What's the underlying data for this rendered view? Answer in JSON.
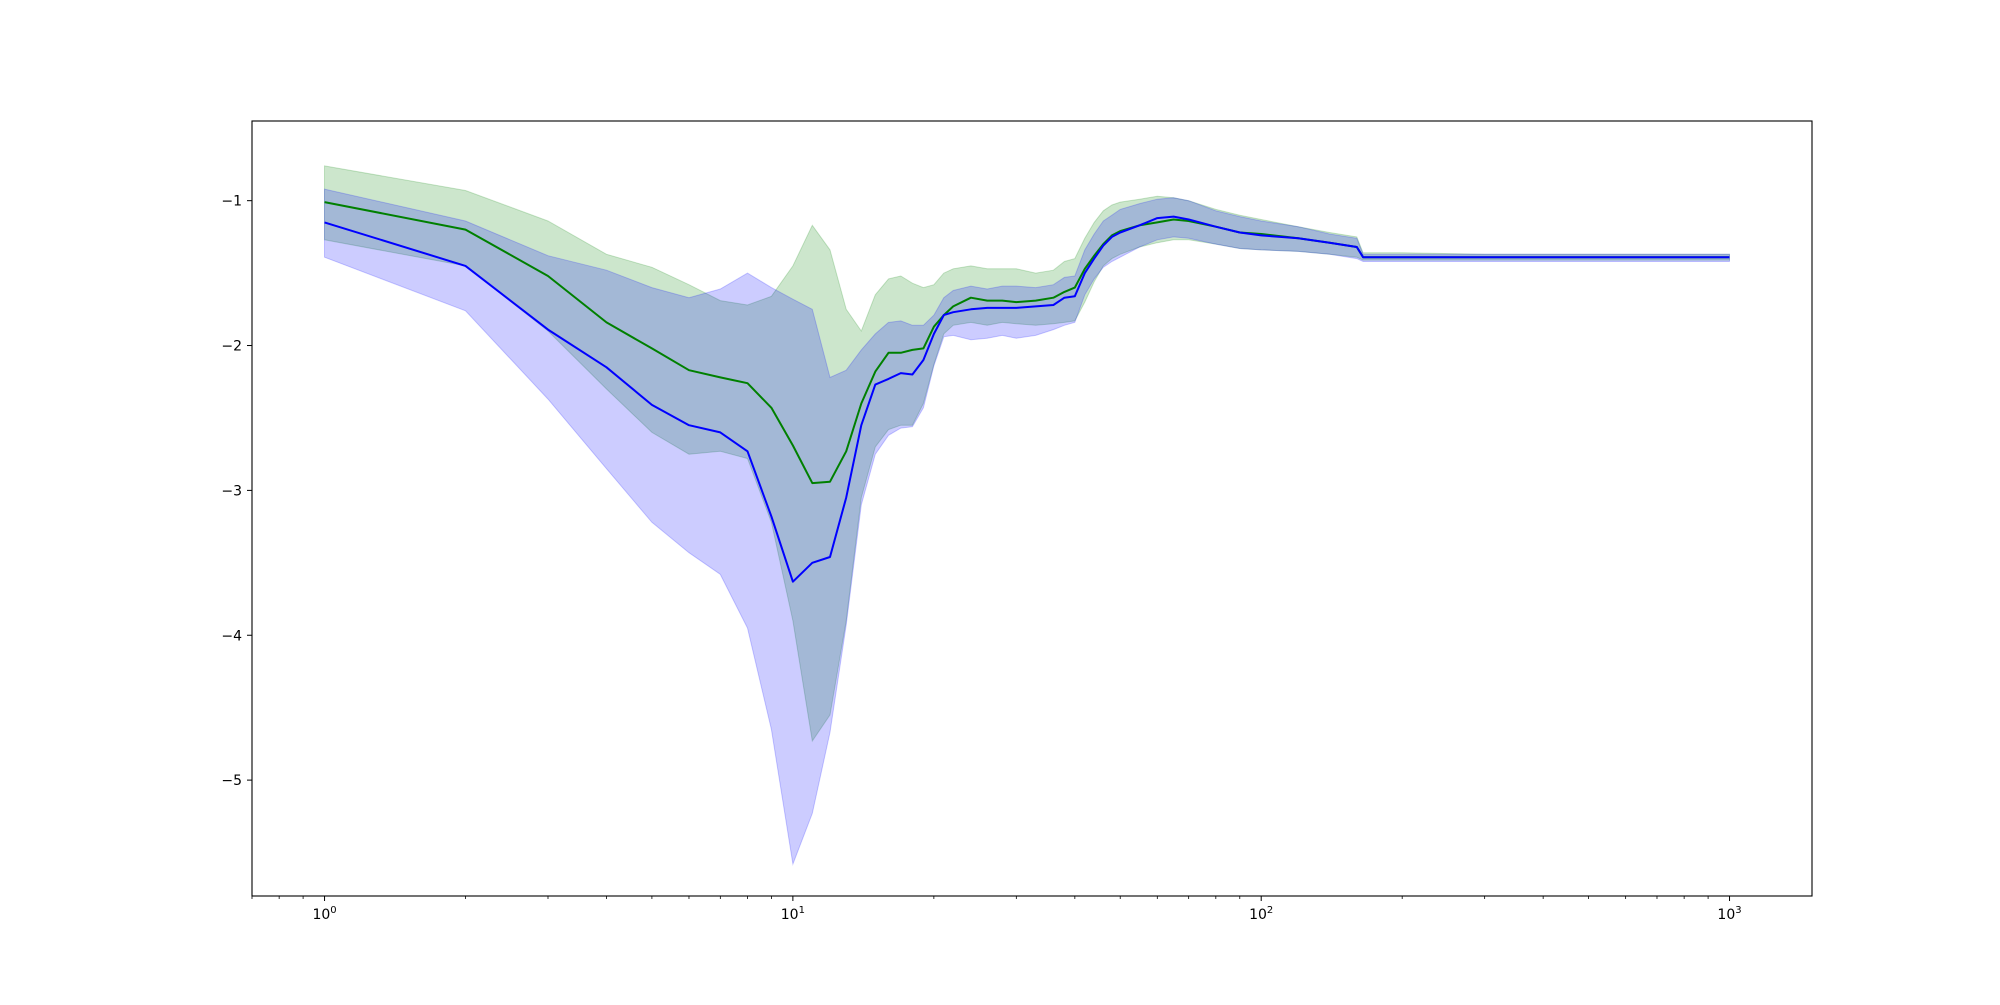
{
  "chart_data": {
    "type": "line",
    "title": "",
    "xlabel": "",
    "ylabel": "",
    "xscale": "log",
    "xlim": [
      0.7,
      1500
    ],
    "ylim": [
      -5.8,
      -0.45
    ],
    "grid": false,
    "legend": "none",
    "x_ticks": [
      {
        "value": 1,
        "base": "10",
        "exp": "0"
      },
      {
        "value": 10,
        "base": "10",
        "exp": "1"
      },
      {
        "value": 100,
        "base": "10",
        "exp": "2"
      },
      {
        "value": 1000,
        "base": "10",
        "exp": "3"
      }
    ],
    "y_ticks": [
      {
        "value": -1,
        "label": "−1"
      },
      {
        "value": -2,
        "label": "−2"
      },
      {
        "value": -3,
        "label": "−3"
      },
      {
        "value": -4,
        "label": "−4"
      },
      {
        "value": -5,
        "label": "−5"
      }
    ],
    "series": [
      {
        "color": "#008000",
        "band_color": "#008000",
        "x": [
          1,
          2,
          3,
          4,
          5,
          6,
          7,
          8,
          9,
          10,
          11,
          12,
          13,
          14,
          15,
          16,
          17,
          18,
          19,
          20,
          21,
          22,
          24,
          26,
          28,
          30,
          33,
          36,
          38,
          40,
          42,
          44,
          46,
          48,
          50,
          55,
          60,
          65,
          70,
          80,
          90,
          100,
          120,
          140,
          160,
          165,
          200,
          300,
          500,
          1000
        ],
        "y": [
          -1.01,
          -1.2,
          -1.52,
          -1.84,
          -2.02,
          -2.17,
          -2.22,
          -2.26,
          -2.43,
          -2.69,
          -2.95,
          -2.94,
          -2.73,
          -2.4,
          -2.18,
          -2.05,
          -2.05,
          -2.03,
          -2.02,
          -1.87,
          -1.79,
          -1.73,
          -1.67,
          -1.69,
          -1.69,
          -1.7,
          -1.69,
          -1.67,
          -1.63,
          -1.6,
          -1.47,
          -1.38,
          -1.3,
          -1.24,
          -1.21,
          -1.17,
          -1.15,
          -1.13,
          -1.14,
          -1.18,
          -1.22,
          -1.23,
          -1.26,
          -1.29,
          -1.32,
          -1.39,
          -1.39,
          -1.39,
          -1.39,
          -1.39
        ],
        "upper": [
          -0.76,
          -0.93,
          -1.14,
          -1.37,
          -1.46,
          -1.58,
          -1.69,
          -1.72,
          -1.66,
          -1.45,
          -1.17,
          -1.34,
          -1.75,
          -1.9,
          -1.65,
          -1.54,
          -1.52,
          -1.57,
          -1.6,
          -1.58,
          -1.5,
          -1.47,
          -1.45,
          -1.47,
          -1.47,
          -1.47,
          -1.5,
          -1.48,
          -1.42,
          -1.4,
          -1.26,
          -1.15,
          -1.07,
          -1.03,
          -1.01,
          -0.99,
          -0.97,
          -0.98,
          -1.0,
          -1.06,
          -1.1,
          -1.13,
          -1.18,
          -1.22,
          -1.25,
          -1.36,
          -1.36,
          -1.37,
          -1.37,
          -1.37
        ],
        "lower": [
          -1.27,
          -1.45,
          -1.9,
          -2.3,
          -2.6,
          -2.75,
          -2.73,
          -2.78,
          -3.22,
          -3.9,
          -4.73,
          -4.55,
          -3.9,
          -3.05,
          -2.7,
          -2.58,
          -2.55,
          -2.55,
          -2.4,
          -2.13,
          -1.92,
          -1.86,
          -1.84,
          -1.86,
          -1.84,
          -1.85,
          -1.86,
          -1.85,
          -1.84,
          -1.83,
          -1.7,
          -1.56,
          -1.45,
          -1.4,
          -1.37,
          -1.32,
          -1.29,
          -1.27,
          -1.27,
          -1.3,
          -1.33,
          -1.34,
          -1.35,
          -1.37,
          -1.39,
          -1.41,
          -1.41,
          -1.41,
          -1.41,
          -1.41
        ]
      },
      {
        "color": "#0000ff",
        "band_color": "#0000ff",
        "x": [
          1,
          2,
          3,
          4,
          5,
          6,
          7,
          8,
          9,
          10,
          11,
          12,
          13,
          14,
          15,
          16,
          17,
          18,
          19,
          20,
          21,
          22,
          24,
          26,
          28,
          30,
          33,
          36,
          38,
          40,
          42,
          44,
          46,
          48,
          50,
          55,
          60,
          65,
          70,
          80,
          90,
          100,
          120,
          140,
          160,
          165,
          200,
          300,
          500,
          1000
        ],
        "y": [
          -1.15,
          -1.45,
          -1.89,
          -2.15,
          -2.41,
          -2.55,
          -2.6,
          -2.73,
          -3.18,
          -3.63,
          -3.5,
          -3.46,
          -3.05,
          -2.55,
          -2.27,
          -2.23,
          -2.19,
          -2.2,
          -2.1,
          -1.92,
          -1.79,
          -1.77,
          -1.75,
          -1.74,
          -1.74,
          -1.74,
          -1.73,
          -1.72,
          -1.67,
          -1.66,
          -1.5,
          -1.4,
          -1.31,
          -1.25,
          -1.22,
          -1.17,
          -1.12,
          -1.11,
          -1.13,
          -1.18,
          -1.22,
          -1.24,
          -1.26,
          -1.29,
          -1.32,
          -1.39,
          -1.39,
          -1.39,
          -1.39,
          -1.39
        ],
        "upper": [
          -0.92,
          -1.14,
          -1.38,
          -1.48,
          -1.6,
          -1.67,
          -1.61,
          -1.5,
          -1.6,
          -1.68,
          -1.75,
          -2.22,
          -2.17,
          -2.03,
          -1.92,
          -1.84,
          -1.83,
          -1.86,
          -1.86,
          -1.79,
          -1.67,
          -1.62,
          -1.59,
          -1.61,
          -1.59,
          -1.59,
          -1.6,
          -1.58,
          -1.53,
          -1.52,
          -1.34,
          -1.23,
          -1.14,
          -1.1,
          -1.06,
          -1.02,
          -0.99,
          -0.98,
          -1.0,
          -1.07,
          -1.11,
          -1.14,
          -1.18,
          -1.23,
          -1.26,
          -1.37,
          -1.37,
          -1.37,
          -1.37,
          -1.37
        ],
        "lower": [
          -1.39,
          -1.76,
          -2.37,
          -2.85,
          -3.22,
          -3.43,
          -3.58,
          -3.95,
          -4.65,
          -5.58,
          -5.23,
          -4.67,
          -3.93,
          -3.1,
          -2.75,
          -2.62,
          -2.57,
          -2.56,
          -2.43,
          -2.14,
          -1.94,
          -1.93,
          -1.96,
          -1.95,
          -1.93,
          -1.95,
          -1.93,
          -1.89,
          -1.86,
          -1.84,
          -1.65,
          -1.54,
          -1.46,
          -1.42,
          -1.39,
          -1.32,
          -1.27,
          -1.25,
          -1.26,
          -1.3,
          -1.33,
          -1.34,
          -1.35,
          -1.37,
          -1.4,
          -1.42,
          -1.42,
          -1.42,
          -1.42,
          -1.42
        ]
      }
    ]
  }
}
